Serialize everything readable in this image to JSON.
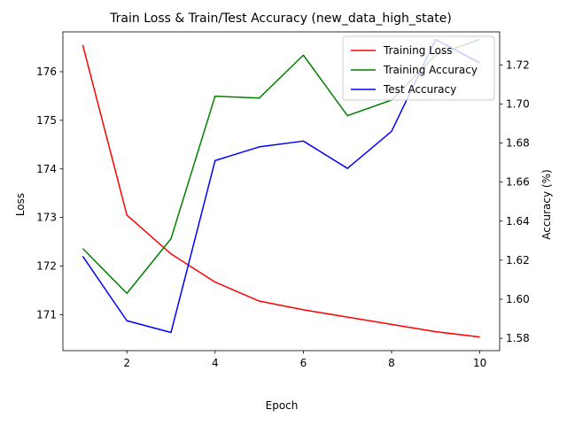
{
  "chart_data": {
    "type": "line",
    "title": "Train Loss & Train/Test Accuracy (new_data_high_state)",
    "xlabel": "Epoch",
    "ylabel_left": "Loss",
    "ylabel_right": "Accuracy (%)",
    "x": [
      1,
      2,
      3,
      4,
      5,
      6,
      7,
      8,
      9,
      10
    ],
    "xlim": [
      0.55,
      10.45
    ],
    "xticks": [
      2,
      4,
      6,
      8,
      10
    ],
    "ylim_left": [
      170.26,
      176.82
    ],
    "yticks_left": [
      171,
      172,
      173,
      174,
      175,
      176
    ],
    "ylim_right": [
      1.5737,
      1.7369
    ],
    "yticks_right": [
      1.58,
      1.6,
      1.62,
      1.64,
      1.66,
      1.68,
      1.7,
      1.72
    ],
    "legend_position": "top-right",
    "grid": false,
    "series": [
      {
        "name": "Training Loss",
        "axis": "left",
        "color": "#ff0000",
        "values": [
          176.55,
          173.05,
          172.25,
          171.67,
          171.28,
          171.1,
          170.95,
          170.8,
          170.65,
          170.54
        ]
      },
      {
        "name": "Training Accuracy",
        "axis": "right",
        "color": "#008000",
        "values": [
          1.626,
          1.603,
          1.631,
          1.704,
          1.703,
          1.725,
          1.694,
          1.702,
          1.725,
          1.733
        ]
      },
      {
        "name": "Test Accuracy",
        "axis": "right",
        "color": "#0000ff",
        "values": [
          1.622,
          1.589,
          1.583,
          1.671,
          1.678,
          1.681,
          1.667,
          1.686,
          1.733,
          1.721
        ]
      }
    ]
  }
}
